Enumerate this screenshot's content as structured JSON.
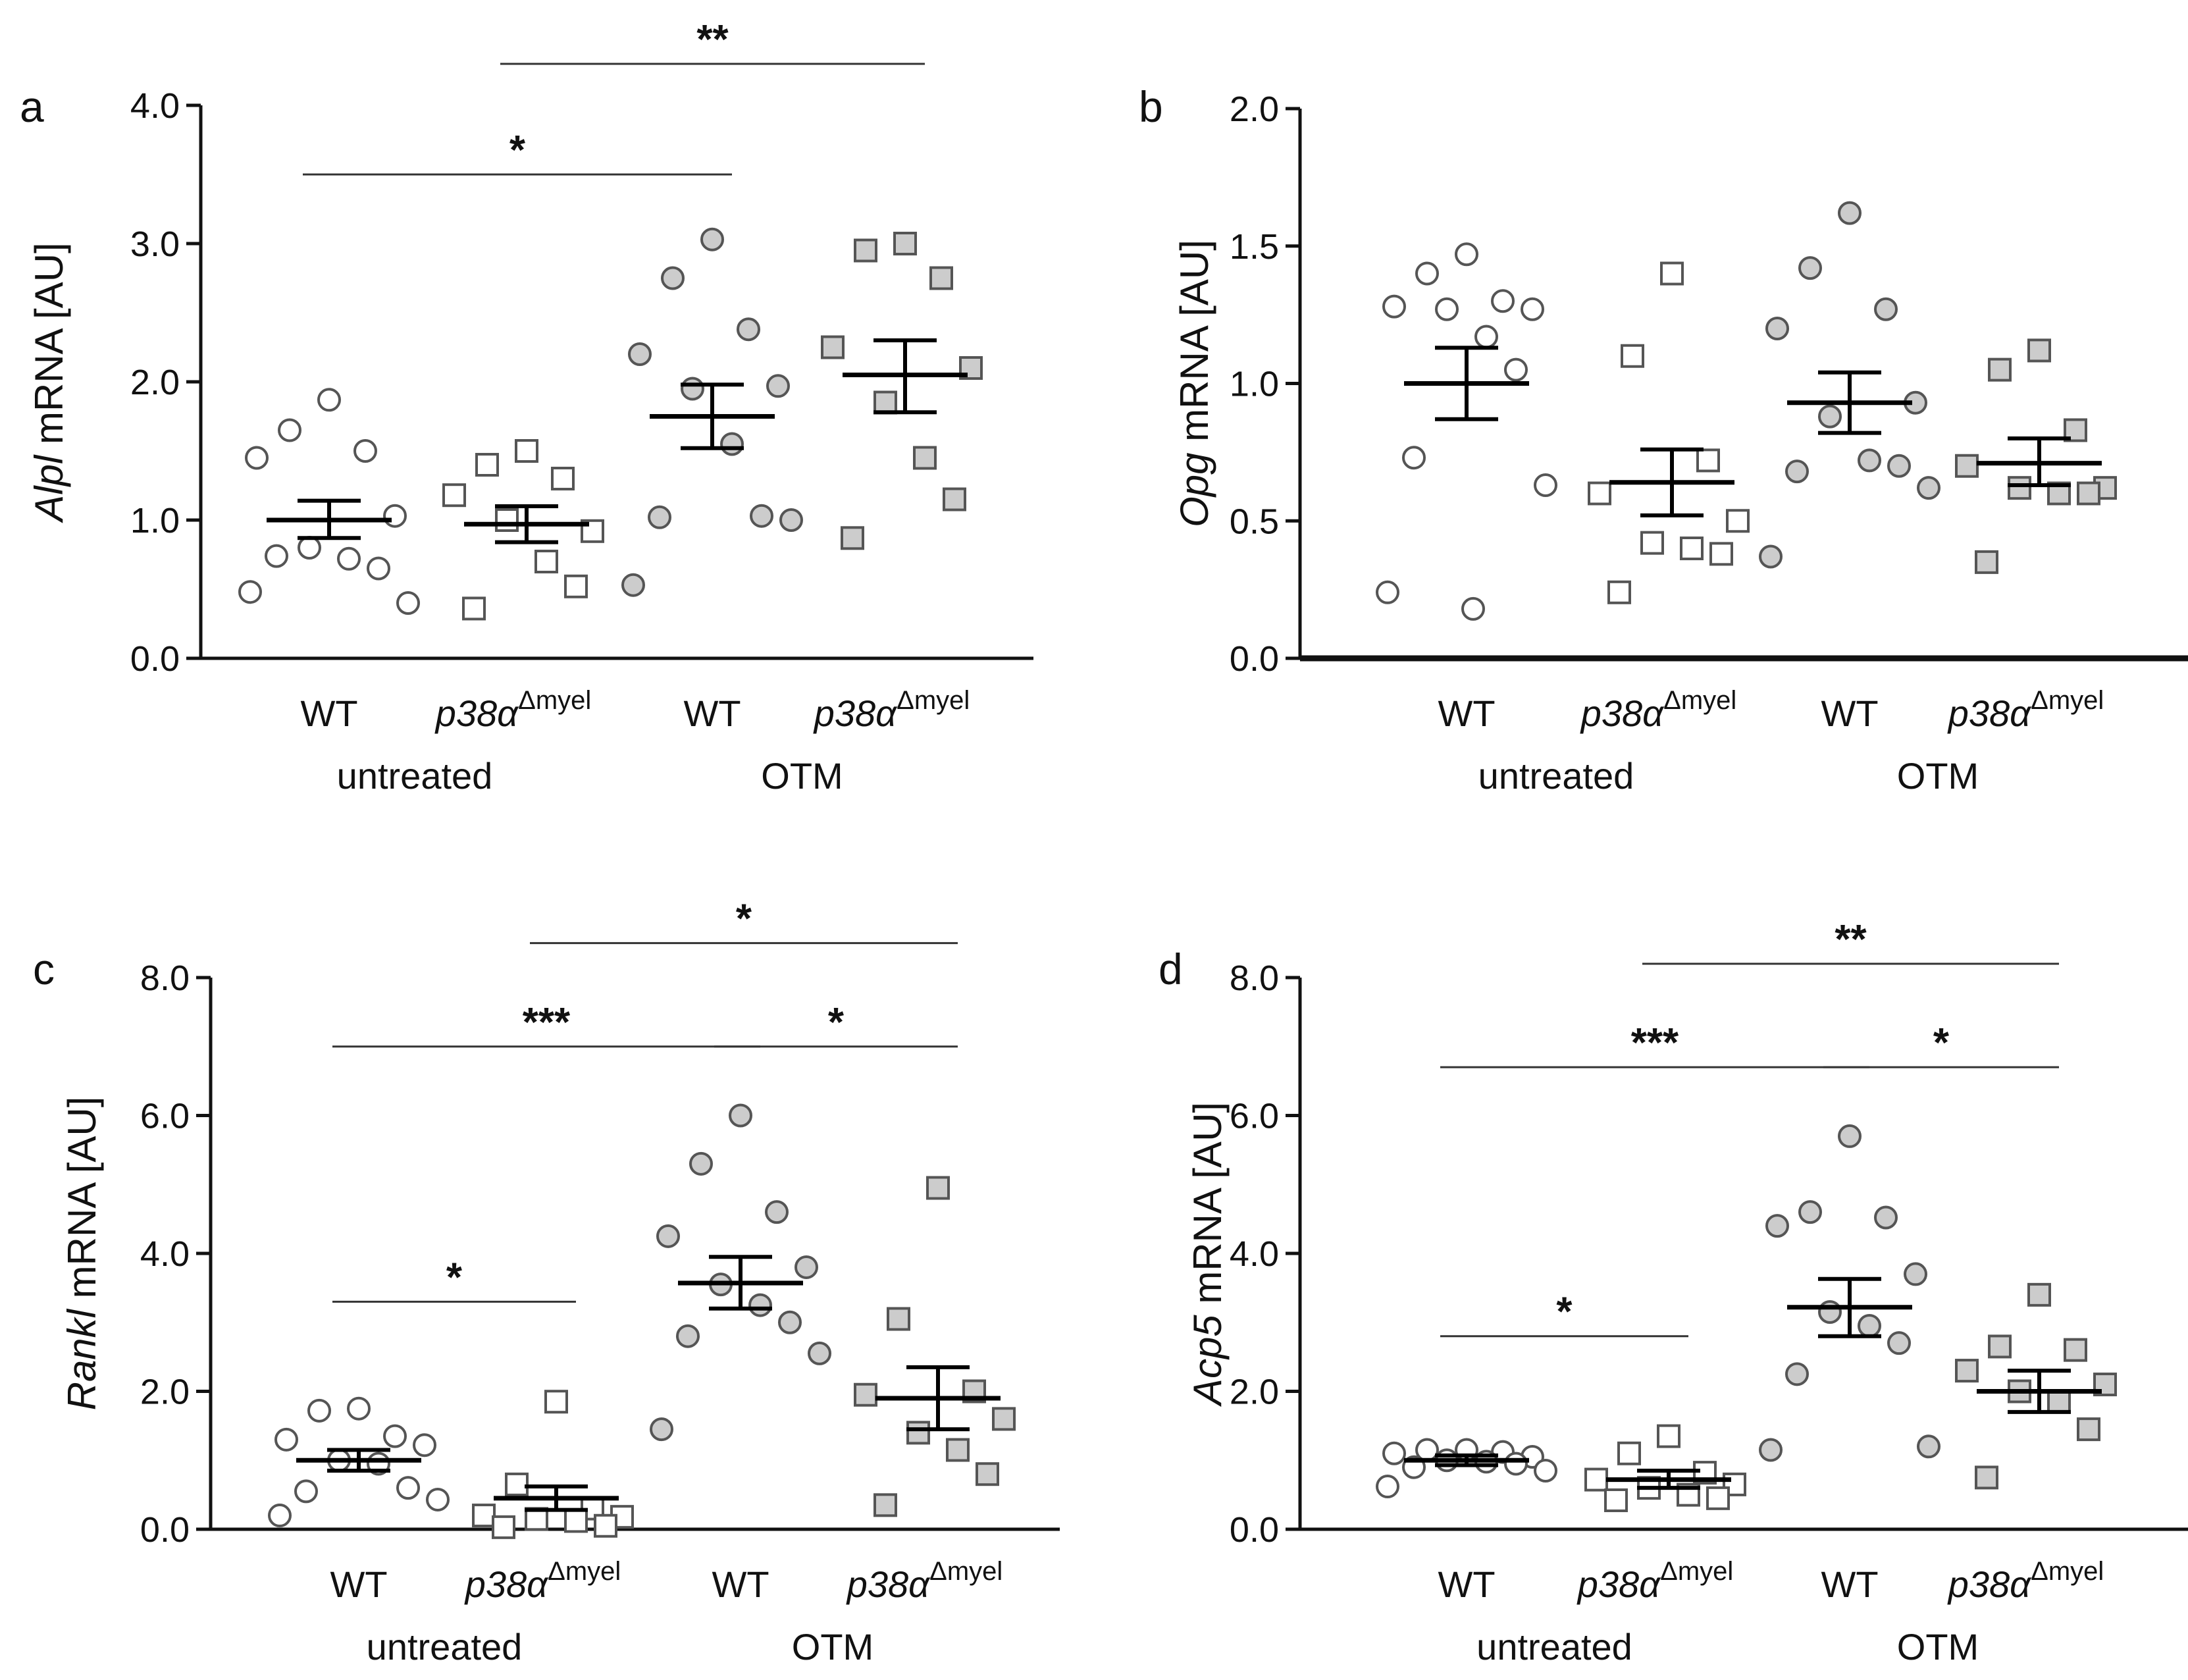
{
  "colors": {
    "axis": "#111111",
    "open_marker_fill": "#ffffff",
    "filled_marker_fill": "#cccccc",
    "marker_stroke": "#555555",
    "mean_bar": "#000000"
  },
  "chart_data": [
    {
      "panel": "a",
      "type": "scatter",
      "ylabel_italic": "Alpl",
      "ylabel_rest": " mRNA [AU]",
      "ylim": [
        0,
        4
      ],
      "yticks": [
        "0.0",
        "1.0",
        "2.0",
        "3.0",
        "4.0"
      ],
      "ytick_values": [
        0,
        1,
        2,
        3,
        4
      ],
      "series": [
        {
          "name": "untreated WT",
          "marker": "circle",
          "filled": false,
          "mean": 1.0,
          "sem": [
            0.87,
            1.14
          ],
          "points": [
            1.87,
            1.65,
            1.5,
            1.45,
            1.03,
            0.8,
            0.72,
            0.65,
            0.74,
            0.4,
            0.48
          ]
        },
        {
          "name": "untreated p38α Δmyel",
          "marker": "square",
          "filled": false,
          "mean": 0.97,
          "sem": [
            0.84,
            1.1
          ],
          "points": [
            1.5,
            1.4,
            1.3,
            1.18,
            0.92,
            1.0,
            0.7,
            0.52,
            0.36
          ]
        },
        {
          "name": "OTM WT",
          "marker": "circle",
          "filled": true,
          "mean": 1.75,
          "sem": [
            1.52,
            1.98
          ],
          "points": [
            3.03,
            2.75,
            2.38,
            2.2,
            1.97,
            1.95,
            1.55,
            1.03,
            1.02,
            1.0,
            0.53
          ]
        },
        {
          "name": "OTM p38α Δmyel",
          "marker": "square",
          "filled": true,
          "mean": 2.05,
          "sem": [
            1.78,
            2.3
          ],
          "points": [
            3.0,
            2.95,
            2.75,
            2.25,
            2.1,
            1.85,
            1.45,
            1.15,
            0.87
          ]
        }
      ],
      "significance": [
        {
          "from": 0,
          "to": 2,
          "label": "*",
          "y": 3.5
        },
        {
          "from": 1,
          "to": 3,
          "label": "**",
          "y": 4.3
        }
      ]
    },
    {
      "panel": "b",
      "type": "scatter",
      "ylabel_italic": "Opg",
      "ylabel_rest": " mRNA [AU]",
      "ylim": [
        0,
        2
      ],
      "yticks": [
        "0.0",
        "0.5",
        "1.0",
        "1.5",
        "2.0"
      ],
      "ytick_values": [
        0,
        0.5,
        1,
        1.5,
        2
      ],
      "series": [
        {
          "name": "untreated WT",
          "marker": "circle",
          "filled": false,
          "mean": 1.0,
          "sem": [
            0.87,
            1.13
          ],
          "points": [
            1.47,
            1.4,
            1.3,
            1.28,
            1.27,
            1.27,
            1.17,
            1.05,
            0.73,
            0.63,
            0.24,
            0.18
          ]
        },
        {
          "name": "untreated p38α Δmyel",
          "marker": "square",
          "filled": false,
          "mean": 0.64,
          "sem": [
            0.52,
            0.76
          ],
          "points": [
            1.4,
            1.1,
            0.72,
            0.6,
            0.5,
            0.42,
            0.4,
            0.38,
            0.24
          ]
        },
        {
          "name": "OTM WT",
          "marker": "circle",
          "filled": true,
          "mean": 0.93,
          "sem": [
            0.82,
            1.04
          ],
          "points": [
            1.62,
            1.42,
            1.27,
            1.2,
            0.93,
            0.88,
            0.72,
            0.7,
            0.68,
            0.62,
            0.37
          ]
        },
        {
          "name": "OTM p38α Δmyel",
          "marker": "square",
          "filled": true,
          "mean": 0.71,
          "sem": [
            0.63,
            0.8
          ],
          "points": [
            1.12,
            1.05,
            0.83,
            0.7,
            0.62,
            0.62,
            0.6,
            0.6,
            0.35
          ]
        }
      ],
      "significance": []
    },
    {
      "panel": "c",
      "type": "scatter",
      "ylabel_italic": "Rankl",
      "ylabel_rest": " mRNA [AU]",
      "ylim": [
        0,
        8
      ],
      "yticks": [
        "0.0",
        "2.0",
        "4.0",
        "6.0",
        "8.0"
      ],
      "ytick_values": [
        0,
        2,
        4,
        6,
        8
      ],
      "series": [
        {
          "name": "untreated WT",
          "marker": "circle",
          "filled": false,
          "mean": 1.0,
          "sem": [
            0.85,
            1.15
          ],
          "points": [
            1.75,
            1.72,
            1.35,
            1.3,
            1.22,
            1.0,
            0.95,
            0.6,
            0.55,
            0.43,
            0.2
          ]
        },
        {
          "name": "untreated p38α Δmyel",
          "marker": "square",
          "filled": false,
          "mean": 0.45,
          "sem": [
            0.28,
            0.62
          ],
          "points": [
            1.85,
            0.65,
            0.3,
            0.2,
            0.18,
            0.15,
            0.12,
            0.05,
            0.03
          ]
        },
        {
          "name": "OTM WT",
          "marker": "circle",
          "filled": true,
          "mean": 3.57,
          "sem": [
            3.2,
            3.95
          ],
          "points": [
            6.0,
            5.3,
            4.6,
            4.25,
            3.8,
            3.55,
            3.25,
            3.0,
            2.8,
            2.55,
            1.45
          ]
        },
        {
          "name": "OTM p38α Δmyel",
          "marker": "square",
          "filled": true,
          "mean": 1.9,
          "sem": [
            1.45,
            2.35
          ],
          "points": [
            4.95,
            3.05,
            2.0,
            1.95,
            1.6,
            1.4,
            1.15,
            0.8,
            0.35
          ]
        }
      ],
      "significance": [
        {
          "from": 0,
          "to": 1,
          "label": "*",
          "y": 3.3
        },
        {
          "from": 0,
          "to": 2,
          "label": "***",
          "y": 7.0
        },
        {
          "from": 2,
          "to": 3,
          "label": "*",
          "y": 7.0
        },
        {
          "from": 1,
          "to": 3,
          "label": "*",
          "y": 8.5
        }
      ]
    },
    {
      "panel": "d",
      "type": "scatter",
      "ylabel_italic": "Acp5",
      "ylabel_rest": " mRNA [AU]",
      "ylim": [
        0,
        8
      ],
      "yticks": [
        "0.0",
        "2.0",
        "4.0",
        "6.0",
        "8.0"
      ],
      "ytick_values": [
        0,
        2,
        4,
        6,
        8
      ],
      "series": [
        {
          "name": "untreated WT",
          "marker": "circle",
          "filled": false,
          "mean": 1.0,
          "sem": [
            0.93,
            1.07
          ],
          "points": [
            1.15,
            1.15,
            1.12,
            1.1,
            1.05,
            1.0,
            0.98,
            0.95,
            0.9,
            0.85,
            0.62
          ]
        },
        {
          "name": "untreated p38α Δmyel",
          "marker": "square",
          "filled": false,
          "mean": 0.72,
          "sem": [
            0.6,
            0.85
          ],
          "points": [
            1.35,
            1.1,
            0.82,
            0.72,
            0.65,
            0.6,
            0.5,
            0.45,
            0.42
          ]
        },
        {
          "name": "OTM WT",
          "marker": "circle",
          "filled": true,
          "mean": 3.22,
          "sem": [
            2.8,
            3.63
          ],
          "points": [
            5.7,
            4.6,
            4.52,
            4.4,
            3.7,
            3.15,
            2.95,
            2.7,
            2.25,
            1.2,
            1.15
          ]
        },
        {
          "name": "OTM p38α Δmyel",
          "marker": "square",
          "filled": true,
          "mean": 2.0,
          "sem": [
            1.7,
            2.3
          ],
          "points": [
            3.4,
            2.65,
            2.6,
            2.3,
            2.1,
            2.0,
            1.85,
            1.45,
            0.75
          ]
        }
      ],
      "significance": [
        {
          "from": 0,
          "to": 1,
          "label": "*",
          "y": 2.8
        },
        {
          "from": 0,
          "to": 2,
          "label": "***",
          "y": 6.7
        },
        {
          "from": 2,
          "to": 3,
          "label": "*",
          "y": 6.7
        },
        {
          "from": 1,
          "to": 3,
          "label": "**",
          "y": 8.2
        }
      ]
    }
  ],
  "x_labels": {
    "wt": "WT",
    "ko_main": "p38α",
    "ko_sup": "Δmyel",
    "group_untreated": "untreated",
    "group_otm": "OTM"
  }
}
